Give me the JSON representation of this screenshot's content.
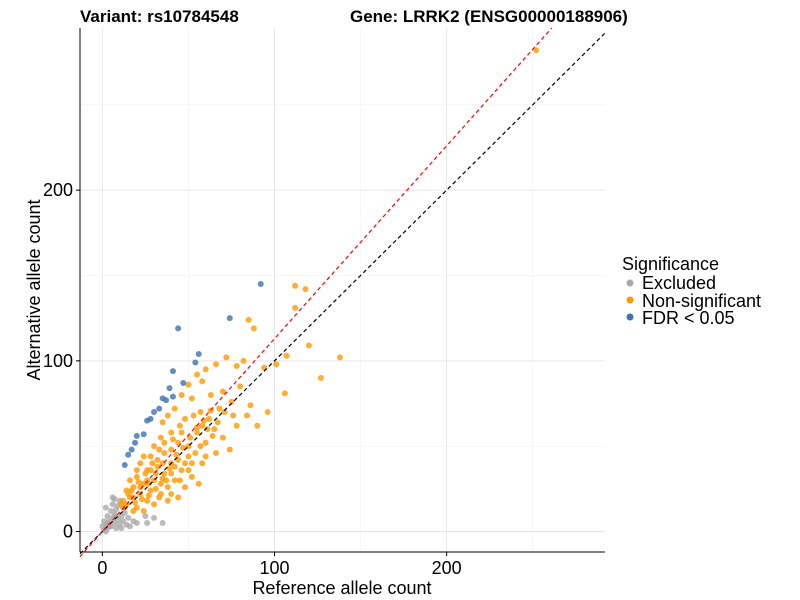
{
  "chart_data": {
    "type": "scatter",
    "title_left": "Variant: rs10784548",
    "title_right": "Gene: LRRK2 (ENSG00000188906)",
    "xlabel": "Reference allele count",
    "ylabel": "Alternative allele count",
    "xlim": [
      -13,
      292
    ],
    "ylim": [
      -12,
      295
    ],
    "xticks": [
      0,
      100,
      200
    ],
    "yticks": [
      0,
      100,
      200
    ],
    "xtick_labels": [
      "0",
      "100",
      "200"
    ],
    "ytick_labels": [
      "0",
      "100",
      "200"
    ],
    "grid": true,
    "legend": {
      "title": "Significance",
      "placement": "right",
      "entries": [
        "Excluded",
        "Non-significant",
        "FDR < 0.05"
      ]
    },
    "reference_lines": [
      {
        "name": "identity",
        "slope": 1,
        "intercept": 0,
        "color": "#000000",
        "style": "dashed"
      },
      {
        "name": "fit",
        "slope": 1.13,
        "intercept": 0,
        "color": "#ff0000",
        "style": "dashed"
      }
    ],
    "series": [
      {
        "name": "Excluded",
        "color": "#aaaaaa",
        "points": [
          [
            1,
            1
          ],
          [
            2,
            4
          ],
          [
            3,
            2
          ],
          [
            4,
            6
          ],
          [
            5,
            3
          ],
          [
            6,
            8
          ],
          [
            7,
            5
          ],
          [
            8,
            2
          ],
          [
            9,
            7
          ],
          [
            10,
            4
          ],
          [
            3,
            9
          ],
          [
            5,
            12
          ],
          [
            7,
            10
          ],
          [
            2,
            14
          ],
          [
            6,
            16
          ],
          [
            8,
            13
          ],
          [
            10,
            18
          ],
          [
            4,
            3
          ],
          [
            11,
            9
          ],
          [
            12,
            6
          ],
          [
            13,
            11
          ],
          [
            14,
            4
          ],
          [
            9,
            15
          ],
          [
            7,
            19
          ],
          [
            15,
            8
          ],
          [
            16,
            3
          ],
          [
            18,
            6
          ],
          [
            20,
            5
          ],
          [
            26,
            5
          ],
          [
            30,
            8
          ],
          [
            35,
            5
          ],
          [
            25,
            9
          ],
          [
            12,
            14
          ],
          [
            6,
            20
          ],
          [
            1,
            6
          ],
          [
            3,
            5
          ],
          [
            8,
            9
          ],
          [
            11,
            2
          ],
          [
            0,
            3
          ],
          [
            2,
            0
          ]
        ]
      },
      {
        "name": "Non-significant",
        "color": "#ff9900",
        "points": [
          [
            252,
            282
          ],
          [
            112,
            144
          ],
          [
            118,
            142
          ],
          [
            112,
            131
          ],
          [
            85,
            124
          ],
          [
            88,
            119
          ],
          [
            120,
            109
          ],
          [
            138,
            102
          ],
          [
            127,
            90
          ],
          [
            106,
            81
          ],
          [
            96,
            70
          ],
          [
            107,
            103
          ],
          [
            101,
            98
          ],
          [
            94,
            96
          ],
          [
            82,
            100
          ],
          [
            78,
            97
          ],
          [
            72,
            102
          ],
          [
            66,
            98
          ],
          [
            60,
            95
          ],
          [
            55,
            92
          ],
          [
            58,
            88
          ],
          [
            50,
            86
          ],
          [
            63,
            80
          ],
          [
            70,
            82
          ],
          [
            75,
            76
          ],
          [
            80,
            85
          ],
          [
            68,
            72
          ],
          [
            86,
            74
          ],
          [
            90,
            62
          ],
          [
            78,
            62
          ],
          [
            65,
            60
          ],
          [
            57,
            70
          ],
          [
            52,
            78
          ],
          [
            46,
            80
          ],
          [
            42,
            72
          ],
          [
            38,
            68
          ],
          [
            35,
            64
          ],
          [
            48,
            66
          ],
          [
            55,
            58
          ],
          [
            60,
            52
          ],
          [
            70,
            55
          ],
          [
            74,
            48
          ],
          [
            66,
            46
          ],
          [
            58,
            40
          ],
          [
            50,
            44
          ],
          [
            44,
            52
          ],
          [
            40,
            58
          ],
          [
            34,
            55
          ],
          [
            30,
            50
          ],
          [
            28,
            44
          ],
          [
            36,
            46
          ],
          [
            40,
            40
          ],
          [
            46,
            36
          ],
          [
            52,
            32
          ],
          [
            56,
            28
          ],
          [
            48,
            26
          ],
          [
            42,
            30
          ],
          [
            36,
            34
          ],
          [
            32,
            38
          ],
          [
            26,
            36
          ],
          [
            22,
            40
          ],
          [
            20,
            32
          ],
          [
            24,
            28
          ],
          [
            28,
            24
          ],
          [
            34,
            22
          ],
          [
            38,
            18
          ],
          [
            44,
            20
          ],
          [
            30,
            16
          ],
          [
            26,
            18
          ],
          [
            22,
            22
          ],
          [
            18,
            26
          ],
          [
            16,
            20
          ],
          [
            14,
            16
          ],
          [
            18,
            12
          ],
          [
            20,
            14
          ],
          [
            24,
            12
          ],
          [
            12,
            18
          ],
          [
            14,
            24
          ],
          [
            16,
            30
          ],
          [
            20,
            36
          ],
          [
            24,
            44
          ],
          [
            30,
            30
          ],
          [
            34,
            28
          ],
          [
            38,
            26
          ],
          [
            40,
            34
          ],
          [
            44,
            42
          ],
          [
            50,
            50
          ],
          [
            54,
            46
          ],
          [
            58,
            62
          ],
          [
            62,
            66
          ],
          [
            46,
            58
          ],
          [
            40,
            48
          ],
          [
            32,
            42
          ],
          [
            28,
            36
          ],
          [
            26,
            30
          ],
          [
            22,
            26
          ],
          [
            18,
            20
          ],
          [
            15,
            22
          ],
          [
            19,
            17
          ],
          [
            23,
            19
          ],
          [
            27,
            21
          ],
          [
            31,
            25
          ],
          [
            35,
            31
          ],
          [
            39,
            37
          ],
          [
            43,
            45
          ],
          [
            47,
            49
          ],
          [
            51,
            55
          ],
          [
            55,
            61
          ],
          [
            59,
            65
          ],
          [
            63,
            71
          ],
          [
            36,
            52
          ],
          [
            33,
            48
          ],
          [
            29,
            40
          ],
          [
            25,
            34
          ],
          [
            21,
            29
          ],
          [
            17,
            24
          ],
          [
            13,
            14
          ],
          [
            11,
            16
          ],
          [
            35,
            40
          ],
          [
            42,
            38
          ],
          [
            48,
            40
          ],
          [
            37,
            30
          ],
          [
            27,
            28
          ],
          [
            31,
            34
          ],
          [
            41,
            54
          ],
          [
            45,
            62
          ],
          [
            53,
            68
          ],
          [
            61,
            60
          ],
          [
            67,
            64
          ],
          [
            71,
            70
          ],
          [
            76,
            68
          ],
          [
            84,
            68
          ],
          [
            64,
            56
          ],
          [
            57,
            50
          ],
          [
            52,
            40
          ],
          [
            60,
            44
          ],
          [
            45,
            30
          ],
          [
            50,
            36
          ],
          [
            33,
            20
          ],
          [
            40,
            22
          ]
        ]
      },
      {
        "name": "FDR < 0.05",
        "color": "#3d72ad",
        "points": [
          [
            92,
            145
          ],
          [
            74,
            125
          ],
          [
            44,
            119
          ],
          [
            56,
            104
          ],
          [
            54,
            99
          ],
          [
            41,
            94
          ],
          [
            47,
            87
          ],
          [
            39,
            84
          ],
          [
            41,
            79
          ],
          [
            37,
            77
          ],
          [
            30,
            70
          ],
          [
            33,
            72
          ],
          [
            26,
            65
          ],
          [
            24,
            57
          ],
          [
            20,
            56
          ],
          [
            15,
            45
          ],
          [
            13,
            39
          ],
          [
            17,
            48
          ],
          [
            19,
            52
          ],
          [
            28,
            66
          ],
          [
            35,
            78
          ]
        ]
      }
    ]
  }
}
